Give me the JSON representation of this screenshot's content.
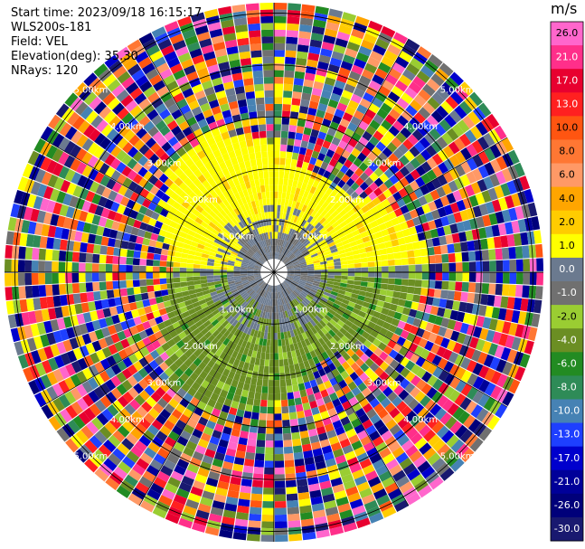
{
  "info": {
    "start_time": "Start time: 2023/09/18 16:15:17",
    "instrument": "WLS200s-181",
    "field": "Field: VEL",
    "elevation": "Elevation(deg): 35.30",
    "nrays": "NRays: 120"
  },
  "colorbar": {
    "unit": "m/s",
    "ticks": [
      "26.0",
      "21.0",
      "17.0",
      "13.0",
      "10.0",
      "8.0",
      "6.0",
      "4.0",
      "2.0",
      "1.0",
      "0.0",
      "-1.0",
      "-2.0",
      "-4.0",
      "-6.0",
      "-8.0",
      "-10.0",
      "-13.0",
      "-17.0",
      "-21.0",
      "-26.0",
      "-30.0"
    ],
    "colors": [
      "#ff66cc",
      "#ff2f8a",
      "#e8002f",
      "#ff2020",
      "#ff5511",
      "#ff7733",
      "#ff9966",
      "#ffa500",
      "#ffcc00",
      "#ffff00",
      "#6b7a8f",
      "#707070",
      "#9acd32",
      "#6b8e23",
      "#228b22",
      "#2e8b57",
      "#4682b4",
      "#1e3fff",
      "#0000cd",
      "#000099",
      "#00007a",
      "#191970"
    ]
  },
  "chart_data": {
    "type": "polar-ppi",
    "rays": 120,
    "range_rings_km": [
      1.0,
      2.0,
      3.0,
      4.0,
      5.0
    ],
    "ring_label": "4.00km",
    "ring_labels_visible": [
      "2.00km",
      "4.00km",
      "1.00km",
      "3.00km",
      "5.00km"
    ],
    "velocity_regions": [
      {
        "range_km": [
          0.0,
          0.9
        ],
        "value": 0.0,
        "description": "near-zero core"
      },
      {
        "range_km": [
          0.9,
          2.6
        ],
        "sector": "north",
        "value": 2.0
      },
      {
        "range_km": [
          0.9,
          2.6
        ],
        "sector": "south",
        "value": -2.0
      },
      {
        "range_km": [
          2.6,
          5.2
        ],
        "value": "noise"
      }
    ]
  }
}
